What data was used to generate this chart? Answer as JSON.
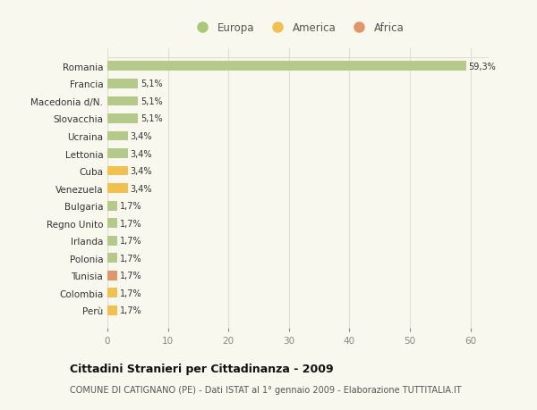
{
  "countries": [
    "Romania",
    "Francia",
    "Macedonia d/N.",
    "Slovacchia",
    "Ucraina",
    "Lettonia",
    "Cuba",
    "Venezuela",
    "Bulgaria",
    "Regno Unito",
    "Irlanda",
    "Polonia",
    "Tunisia",
    "Colombia",
    "Perù"
  ],
  "values": [
    59.3,
    5.1,
    5.1,
    5.1,
    3.4,
    3.4,
    3.4,
    3.4,
    1.7,
    1.7,
    1.7,
    1.7,
    1.7,
    1.7,
    1.7
  ],
  "labels": [
    "59,3%",
    "5,1%",
    "5,1%",
    "5,1%",
    "3,4%",
    "3,4%",
    "3,4%",
    "3,4%",
    "1,7%",
    "1,7%",
    "1,7%",
    "1,7%",
    "1,7%",
    "1,7%",
    "1,7%"
  ],
  "continents": [
    "Europa",
    "Europa",
    "Europa",
    "Europa",
    "Europa",
    "Europa",
    "America",
    "America",
    "Europa",
    "Europa",
    "Europa",
    "Europa",
    "Africa",
    "America",
    "America"
  ],
  "colors": {
    "Europa": "#b5c98a",
    "America": "#f0c050",
    "Africa": "#e0956a"
  },
  "legend_marker_colors": {
    "Europa": "#a8c87a",
    "America": "#f0c050",
    "Africa": "#e0956a"
  },
  "xlim": [
    0,
    63
  ],
  "xticks": [
    0,
    10,
    20,
    30,
    40,
    50,
    60
  ],
  "title": "Cittadini Stranieri per Cittadinanza - 2009",
  "subtitle": "COMUNE DI CATIGNANO (PE) - Dati ISTAT al 1° gennaio 2009 - Elaborazione TUTTITALIA.IT",
  "background_color": "#f8f8ee",
  "grid_color": "#e0e0d0",
  "bar_height": 0.55
}
